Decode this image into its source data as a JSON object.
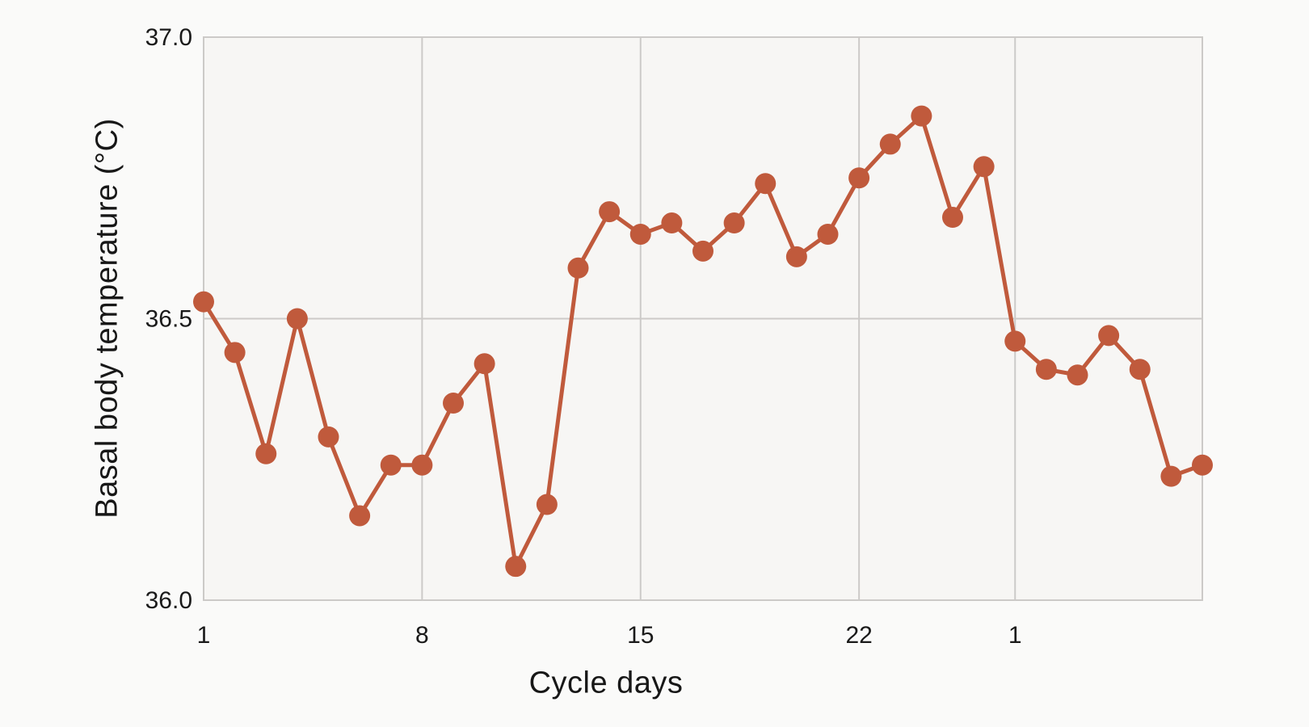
{
  "chart_data": {
    "type": "line",
    "title": "",
    "xlabel": "Cycle days",
    "ylabel": "Basal body temperature (°C)",
    "ylim": [
      36.0,
      37.0
    ],
    "grid": true,
    "legend": false,
    "y_ticks": [
      {
        "value": 37.0,
        "label": "37.0"
      },
      {
        "value": 36.5,
        "label": "36.5"
      },
      {
        "value": 36.0,
        "label": "36.0"
      }
    ],
    "x_ticks": [
      {
        "seq": 1,
        "label": "1"
      },
      {
        "seq": 8,
        "label": "8"
      },
      {
        "seq": 15,
        "label": "15"
      },
      {
        "seq": 22,
        "label": "22"
      },
      {
        "seq": 27,
        "label": "1"
      }
    ],
    "series": [
      {
        "name": "Basal body temperature",
        "color": "#c05a3c",
        "marker": "circle",
        "cycle_days": [
          1,
          2,
          3,
          4,
          5,
          6,
          7,
          8,
          9,
          10,
          11,
          12,
          13,
          14,
          15,
          16,
          17,
          18,
          19,
          20,
          21,
          22,
          23,
          24,
          25,
          26,
          1,
          2,
          3,
          4,
          5,
          6,
          7
        ],
        "values": [
          36.53,
          36.44,
          36.26,
          36.5,
          36.29,
          36.15,
          36.24,
          36.24,
          36.35,
          36.42,
          36.06,
          36.17,
          36.59,
          36.69,
          36.65,
          36.67,
          36.62,
          36.67,
          36.74,
          36.61,
          36.65,
          36.75,
          36.81,
          36.86,
          36.68,
          36.77,
          36.46,
          36.41,
          36.4,
          36.47,
          36.41,
          36.22,
          36.24
        ]
      }
    ]
  },
  "colors": {
    "background": "#fafaf9",
    "plot_background": "#f7f6f4",
    "grid": "#cccac8",
    "text": "#1a1a1a",
    "series": "#c05a3c"
  }
}
